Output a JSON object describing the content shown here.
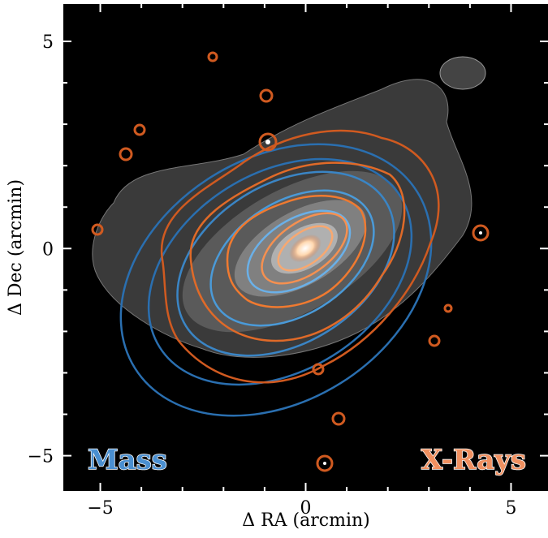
{
  "chart_data": {
    "type": "image",
    "xlabel": "Δ RA (arcmin)",
    "ylabel": "Δ Dec (arcmin)",
    "xlim": [
      -5.9,
      5.9
    ],
    "ylim": [
      -5.85,
      5.9
    ],
    "xticks": [
      {
        "value": -5,
        "label": "−5"
      },
      0,
      5
    ],
    "yticks": [
      {
        "value": -5,
        "label": "−5"
      },
      0,
      5
    ],
    "xminorticks": [
      -4,
      -3,
      -2,
      -1,
      1,
      2,
      3,
      4
    ],
    "yminorticks": [
      -4,
      -3,
      -2,
      -1,
      1,
      2,
      3,
      4
    ],
    "annotations": [
      "Mass",
      "X-Rays"
    ]
  }
}
